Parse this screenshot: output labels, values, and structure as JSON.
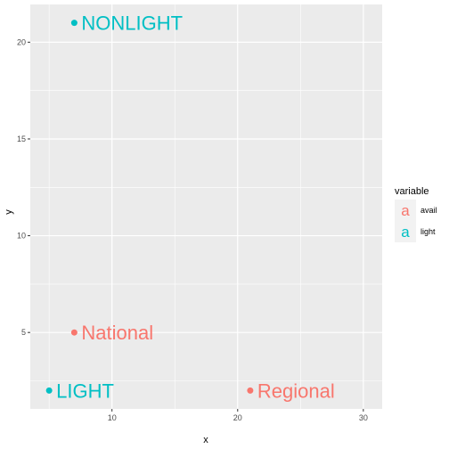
{
  "chart_data": {
    "type": "scatter",
    "xlabel": "x",
    "ylabel": "y",
    "xlim": [
      3.5,
      31.5
    ],
    "ylim": [
      1.05,
      21.95
    ],
    "x_ticks": [
      10,
      20,
      30
    ],
    "y_ticks": [
      5,
      10,
      15,
      20
    ],
    "grid": true,
    "legend_title": "variable",
    "legend_position": "right",
    "series": [
      {
        "name": "avail",
        "color": "#F8766D",
        "points": [
          {
            "x": 7,
            "y": 5,
            "label": "National"
          },
          {
            "x": 21,
            "y": 2,
            "label": "Regional"
          }
        ]
      },
      {
        "name": "light",
        "color": "#00BFC4",
        "points": [
          {
            "x": 7,
            "y": 21,
            "label": "NONLIGHT"
          },
          {
            "x": 5,
            "y": 2,
            "label": "LIGHT"
          }
        ]
      }
    ]
  },
  "legend_glyph": "a",
  "colors": {
    "panel_background": "#EBEBEB",
    "grid_line": "#FFFFFF",
    "key_background": "#F2F2F2"
  }
}
